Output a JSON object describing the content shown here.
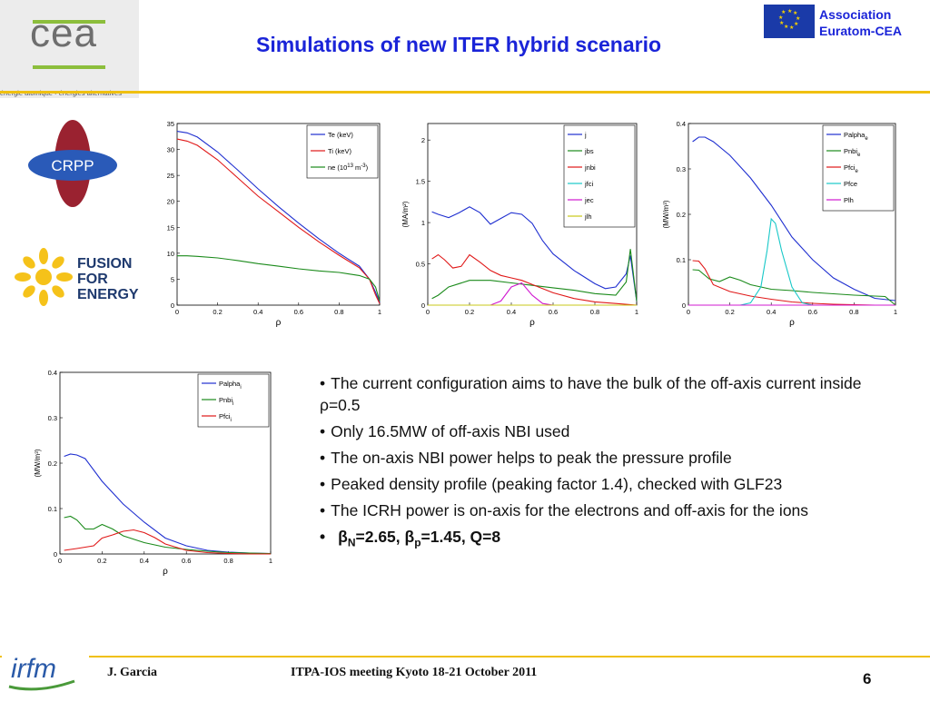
{
  "header": {
    "title": "Simulations of new ITER hybrid scenario",
    "association_line1": "Association",
    "association_line2": "Euratom-CEA",
    "cea_logo_text": "cea",
    "cea_tagline": "énergie atomique • énergies alternatives"
  },
  "side_logos": {
    "crpp": "CRPP",
    "f4e_line1": "FUSION",
    "f4e_line2": "FOR",
    "f4e_line3": "ENERGY"
  },
  "footer": {
    "author": "J. Garcia",
    "meeting": "ITPA-IOS meeting Kyoto 18-21 October 2011",
    "page_number": "6",
    "irfm_logo": "irfm"
  },
  "bullets": [
    "The current configuration aims to have the bulk of the off-axis current inside ρ=0.5",
    "Only 16.5MW of off-axis NBI used",
    "The on-axis NBI power helps to peak the pressure profile",
    "Peaked density profile (peaking factor 1.4), checked with GLF23",
    "The ICRH power is on-axis for the electrons and off-axis for the ions"
  ],
  "bullet_last": {
    "beta_n_symbol": "β",
    "beta_n_sub": "N",
    "beta_n_value": "=2.65, ",
    "beta_p_symbol": "β",
    "beta_p_sub": "p",
    "beta_p_value": "=1.45, Q=8"
  },
  "colors": {
    "title_blue": "#1a24d8",
    "rule_yellow": "#f0c010",
    "series_blue": "#1f2fd0",
    "series_red": "#e01818",
    "series_green": "#1a8a1a",
    "series_cyan": "#18c8c8",
    "series_magenta": "#d018d0",
    "series_yellow": "#c8c818"
  },
  "chart_data": [
    {
      "type": "line",
      "xlabel": "ρ",
      "ylabel": "",
      "xlim": [
        0,
        1
      ],
      "ylim": [
        0,
        35
      ],
      "xticks": [
        "0",
        "0.2",
        "0.4",
        "0.6",
        "0.8",
        "1"
      ],
      "yticks": [
        "0",
        "5",
        "10",
        "15",
        "20",
        "25",
        "30",
        "35"
      ],
      "legend_position": "top-right",
      "series": [
        {
          "name": "Te (keV)",
          "color": "#1f2fd0",
          "x": [
            0,
            0.05,
            0.1,
            0.2,
            0.3,
            0.4,
            0.5,
            0.6,
            0.7,
            0.8,
            0.9,
            0.95,
            0.98,
            1
          ],
          "y": [
            33.5,
            33.2,
            32.4,
            29.5,
            26,
            22.4,
            19,
            15.8,
            12.8,
            10,
            7.5,
            5,
            2.5,
            0.5
          ]
        },
        {
          "name": "Ti (keV)",
          "color": "#e01818",
          "x": [
            0,
            0.05,
            0.1,
            0.2,
            0.3,
            0.4,
            0.5,
            0.6,
            0.7,
            0.8,
            0.9,
            0.95,
            0.98,
            1
          ],
          "y": [
            32,
            31.6,
            30.8,
            28,
            24.5,
            21,
            18,
            15,
            12.2,
            9.6,
            7.2,
            5,
            2,
            0.3
          ]
        },
        {
          "name": "ne (10^13 m^-3)",
          "color": "#1a8a1a",
          "x": [
            0,
            0.05,
            0.1,
            0.2,
            0.3,
            0.4,
            0.5,
            0.6,
            0.7,
            0.8,
            0.9,
            0.95,
            0.98,
            1
          ],
          "y": [
            9.5,
            9.5,
            9.4,
            9.1,
            8.6,
            8,
            7.5,
            7,
            6.6,
            6.3,
            5.7,
            5,
            3.5,
            0.8
          ]
        }
      ]
    },
    {
      "type": "line",
      "xlabel": "ρ",
      "ylabel": "(MA/m²)",
      "xlim": [
        0,
        1
      ],
      "ylim": [
        0,
        2.2
      ],
      "xticks": [
        "0",
        "0.2",
        "0.4",
        "0.6",
        "0.8",
        "1"
      ],
      "yticks": [
        "0",
        "0.5",
        "1",
        "1.5",
        "2"
      ],
      "legend_position": "top-right",
      "series": [
        {
          "name": "j",
          "color": "#1f2fd0",
          "x": [
            0.02,
            0.05,
            0.1,
            0.15,
            0.2,
            0.25,
            0.3,
            0.35,
            0.4,
            0.45,
            0.5,
            0.55,
            0.6,
            0.7,
            0.8,
            0.85,
            0.9,
            0.95,
            0.97,
            1
          ],
          "y": [
            1.13,
            1.1,
            1.06,
            1.12,
            1.19,
            1.12,
            0.98,
            1.05,
            1.12,
            1.1,
            0.99,
            0.78,
            0.62,
            0.42,
            0.26,
            0.2,
            0.22,
            0.38,
            0.6,
            0.05
          ]
        },
        {
          "name": "jbs",
          "color": "#1a8a1a",
          "x": [
            0.02,
            0.05,
            0.1,
            0.2,
            0.3,
            0.4,
            0.5,
            0.6,
            0.7,
            0.8,
            0.9,
            0.95,
            0.97,
            1
          ],
          "y": [
            0.08,
            0.12,
            0.22,
            0.3,
            0.3,
            0.27,
            0.24,
            0.21,
            0.18,
            0.14,
            0.12,
            0.28,
            0.68,
            0.05
          ]
        },
        {
          "name": "jnbi",
          "color": "#e01818",
          "x": [
            0.02,
            0.05,
            0.08,
            0.12,
            0.16,
            0.2,
            0.25,
            0.3,
            0.35,
            0.4,
            0.45,
            0.5,
            0.6,
            0.7,
            0.8,
            0.9,
            1
          ],
          "y": [
            0.56,
            0.61,
            0.55,
            0.45,
            0.47,
            0.61,
            0.52,
            0.42,
            0.36,
            0.33,
            0.3,
            0.25,
            0.15,
            0.08,
            0.04,
            0.02,
            0.0
          ]
        },
        {
          "name": "jfci",
          "color": "#18c8c8",
          "x": [
            0,
            0.5,
            1
          ],
          "y": [
            0.0,
            0.0,
            0.0
          ]
        },
        {
          "name": "jec",
          "color": "#d018d0",
          "x": [
            0,
            0.3,
            0.35,
            0.4,
            0.45,
            0.5,
            0.55,
            0.6,
            1
          ],
          "y": [
            0,
            0,
            0.05,
            0.22,
            0.27,
            0.12,
            0.02,
            0,
            0
          ]
        },
        {
          "name": "jlh",
          "color": "#c8c818",
          "x": [
            0,
            0.5,
            1
          ],
          "y": [
            0.0,
            0.0,
            0.0
          ]
        }
      ]
    },
    {
      "type": "line",
      "xlabel": "ρ",
      "ylabel": "(MW/m³)",
      "xlim": [
        0,
        1
      ],
      "ylim": [
        0,
        0.4
      ],
      "xticks": [
        "0",
        "0.2",
        "0.4",
        "0.6",
        "0.8",
        "1"
      ],
      "yticks": [
        "0",
        "0.1",
        "0.2",
        "0.3",
        "0.4"
      ],
      "legend_position": "top-right",
      "series": [
        {
          "name": "Palpha_e",
          "color": "#1f2fd0",
          "x": [
            0.02,
            0.05,
            0.08,
            0.12,
            0.2,
            0.3,
            0.4,
            0.5,
            0.6,
            0.7,
            0.8,
            0.9,
            1
          ],
          "y": [
            0.36,
            0.37,
            0.37,
            0.36,
            0.33,
            0.28,
            0.22,
            0.15,
            0.1,
            0.06,
            0.035,
            0.015,
            0.01
          ]
        },
        {
          "name": "Pnbi_e",
          "color": "#1a8a1a",
          "x": [
            0.02,
            0.05,
            0.1,
            0.15,
            0.2,
            0.25,
            0.3,
            0.4,
            0.5,
            0.6,
            0.7,
            0.8,
            0.9,
            0.95,
            1
          ],
          "y": [
            0.078,
            0.077,
            0.058,
            0.052,
            0.062,
            0.055,
            0.045,
            0.035,
            0.032,
            0.028,
            0.025,
            0.022,
            0.02,
            0.019,
            0.0
          ]
        },
        {
          "name": "Pfci_e",
          "color": "#e01818",
          "x": [
            0.02,
            0.05,
            0.08,
            0.12,
            0.2,
            0.3,
            0.4,
            0.5,
            0.6,
            0.7,
            0.8,
            0.9,
            1
          ],
          "y": [
            0.098,
            0.097,
            0.08,
            0.045,
            0.03,
            0.02,
            0.013,
            0.007,
            0.004,
            0.002,
            0.001,
            0.0,
            0.0
          ]
        },
        {
          "name": "Pfce",
          "color": "#18c8c8",
          "x": [
            0,
            0.25,
            0.3,
            0.35,
            0.38,
            0.4,
            0.42,
            0.45,
            0.5,
            0.55,
            0.6,
            1
          ],
          "y": [
            0,
            0,
            0.005,
            0.04,
            0.12,
            0.19,
            0.18,
            0.12,
            0.04,
            0.005,
            0,
            0
          ]
        },
        {
          "name": "Plh",
          "color": "#d018d0",
          "x": [
            0,
            0.5,
            1
          ],
          "y": [
            0,
            0,
            0
          ]
        }
      ]
    },
    {
      "type": "line",
      "xlabel": "ρ",
      "ylabel": "(MW/m³)",
      "xlim": [
        0,
        1
      ],
      "ylim": [
        0,
        0.4
      ],
      "xticks": [
        "0",
        "0.2",
        "0.4",
        "0.6",
        "0.8",
        "1"
      ],
      "yticks": [
        "0",
        "0.1",
        "0.2",
        "0.3",
        "0.4"
      ],
      "legend_position": "top-right",
      "series": [
        {
          "name": "Palpha_i",
          "color": "#1f2fd0",
          "x": [
            0.02,
            0.05,
            0.08,
            0.12,
            0.2,
            0.3,
            0.4,
            0.5,
            0.6,
            0.7,
            0.8,
            0.9,
            1
          ],
          "y": [
            0.215,
            0.22,
            0.218,
            0.21,
            0.16,
            0.11,
            0.07,
            0.035,
            0.018,
            0.008,
            0.004,
            0.002,
            0.001
          ]
        },
        {
          "name": "Pnbi_i",
          "color": "#1a8a1a",
          "x": [
            0.02,
            0.05,
            0.08,
            0.12,
            0.16,
            0.2,
            0.25,
            0.3,
            0.4,
            0.5,
            0.6,
            0.7,
            0.8,
            0.9,
            1
          ],
          "y": [
            0.08,
            0.083,
            0.075,
            0.055,
            0.055,
            0.065,
            0.055,
            0.04,
            0.025,
            0.015,
            0.01,
            0.006,
            0.003,
            0.002,
            0.001
          ]
        },
        {
          "name": "Pfci_i",
          "color": "#e01818",
          "x": [
            0.02,
            0.05,
            0.08,
            0.12,
            0.16,
            0.2,
            0.25,
            0.3,
            0.35,
            0.4,
            0.45,
            0.5,
            0.6,
            0.7,
            0.8,
            0.9,
            1
          ],
          "y": [
            0.008,
            0.01,
            0.012,
            0.015,
            0.018,
            0.035,
            0.042,
            0.05,
            0.053,
            0.047,
            0.036,
            0.022,
            0.008,
            0.003,
            0.001,
            0.0,
            0.0
          ]
        }
      ]
    }
  ]
}
